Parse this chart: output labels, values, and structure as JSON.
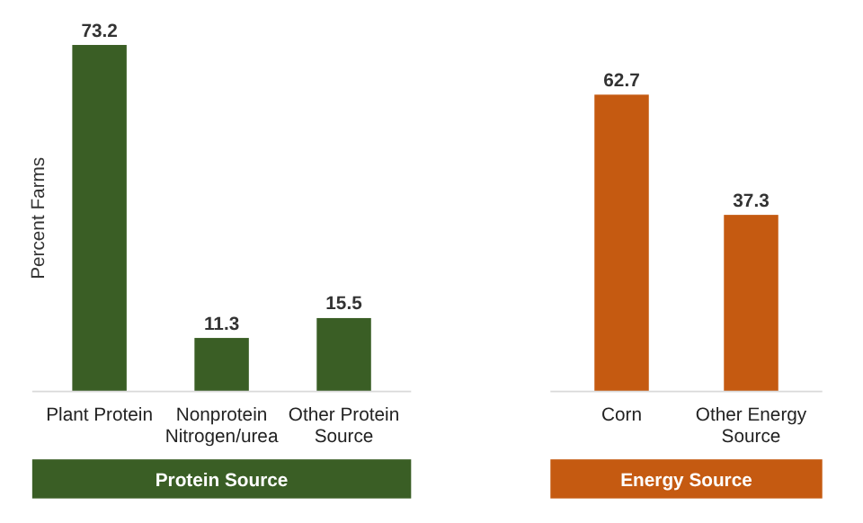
{
  "chart_data": [
    {
      "type": "bar",
      "ylabel": "Percent Farms",
      "xlabel": "Protein Source",
      "categories": [
        "Plant Protein",
        "Nonprotein Nitrogen/urea",
        "Other Protein Source"
      ],
      "values": [
        73.2,
        11.3,
        15.5
      ],
      "color": "#3a5e25",
      "data_labels": true
    },
    {
      "type": "bar",
      "xlabel": "Energy Source",
      "categories": [
        "Corn",
        "Other Energy Source"
      ],
      "values": [
        62.7,
        37.3
      ],
      "color": "#c55a11",
      "data_labels": true
    }
  ]
}
